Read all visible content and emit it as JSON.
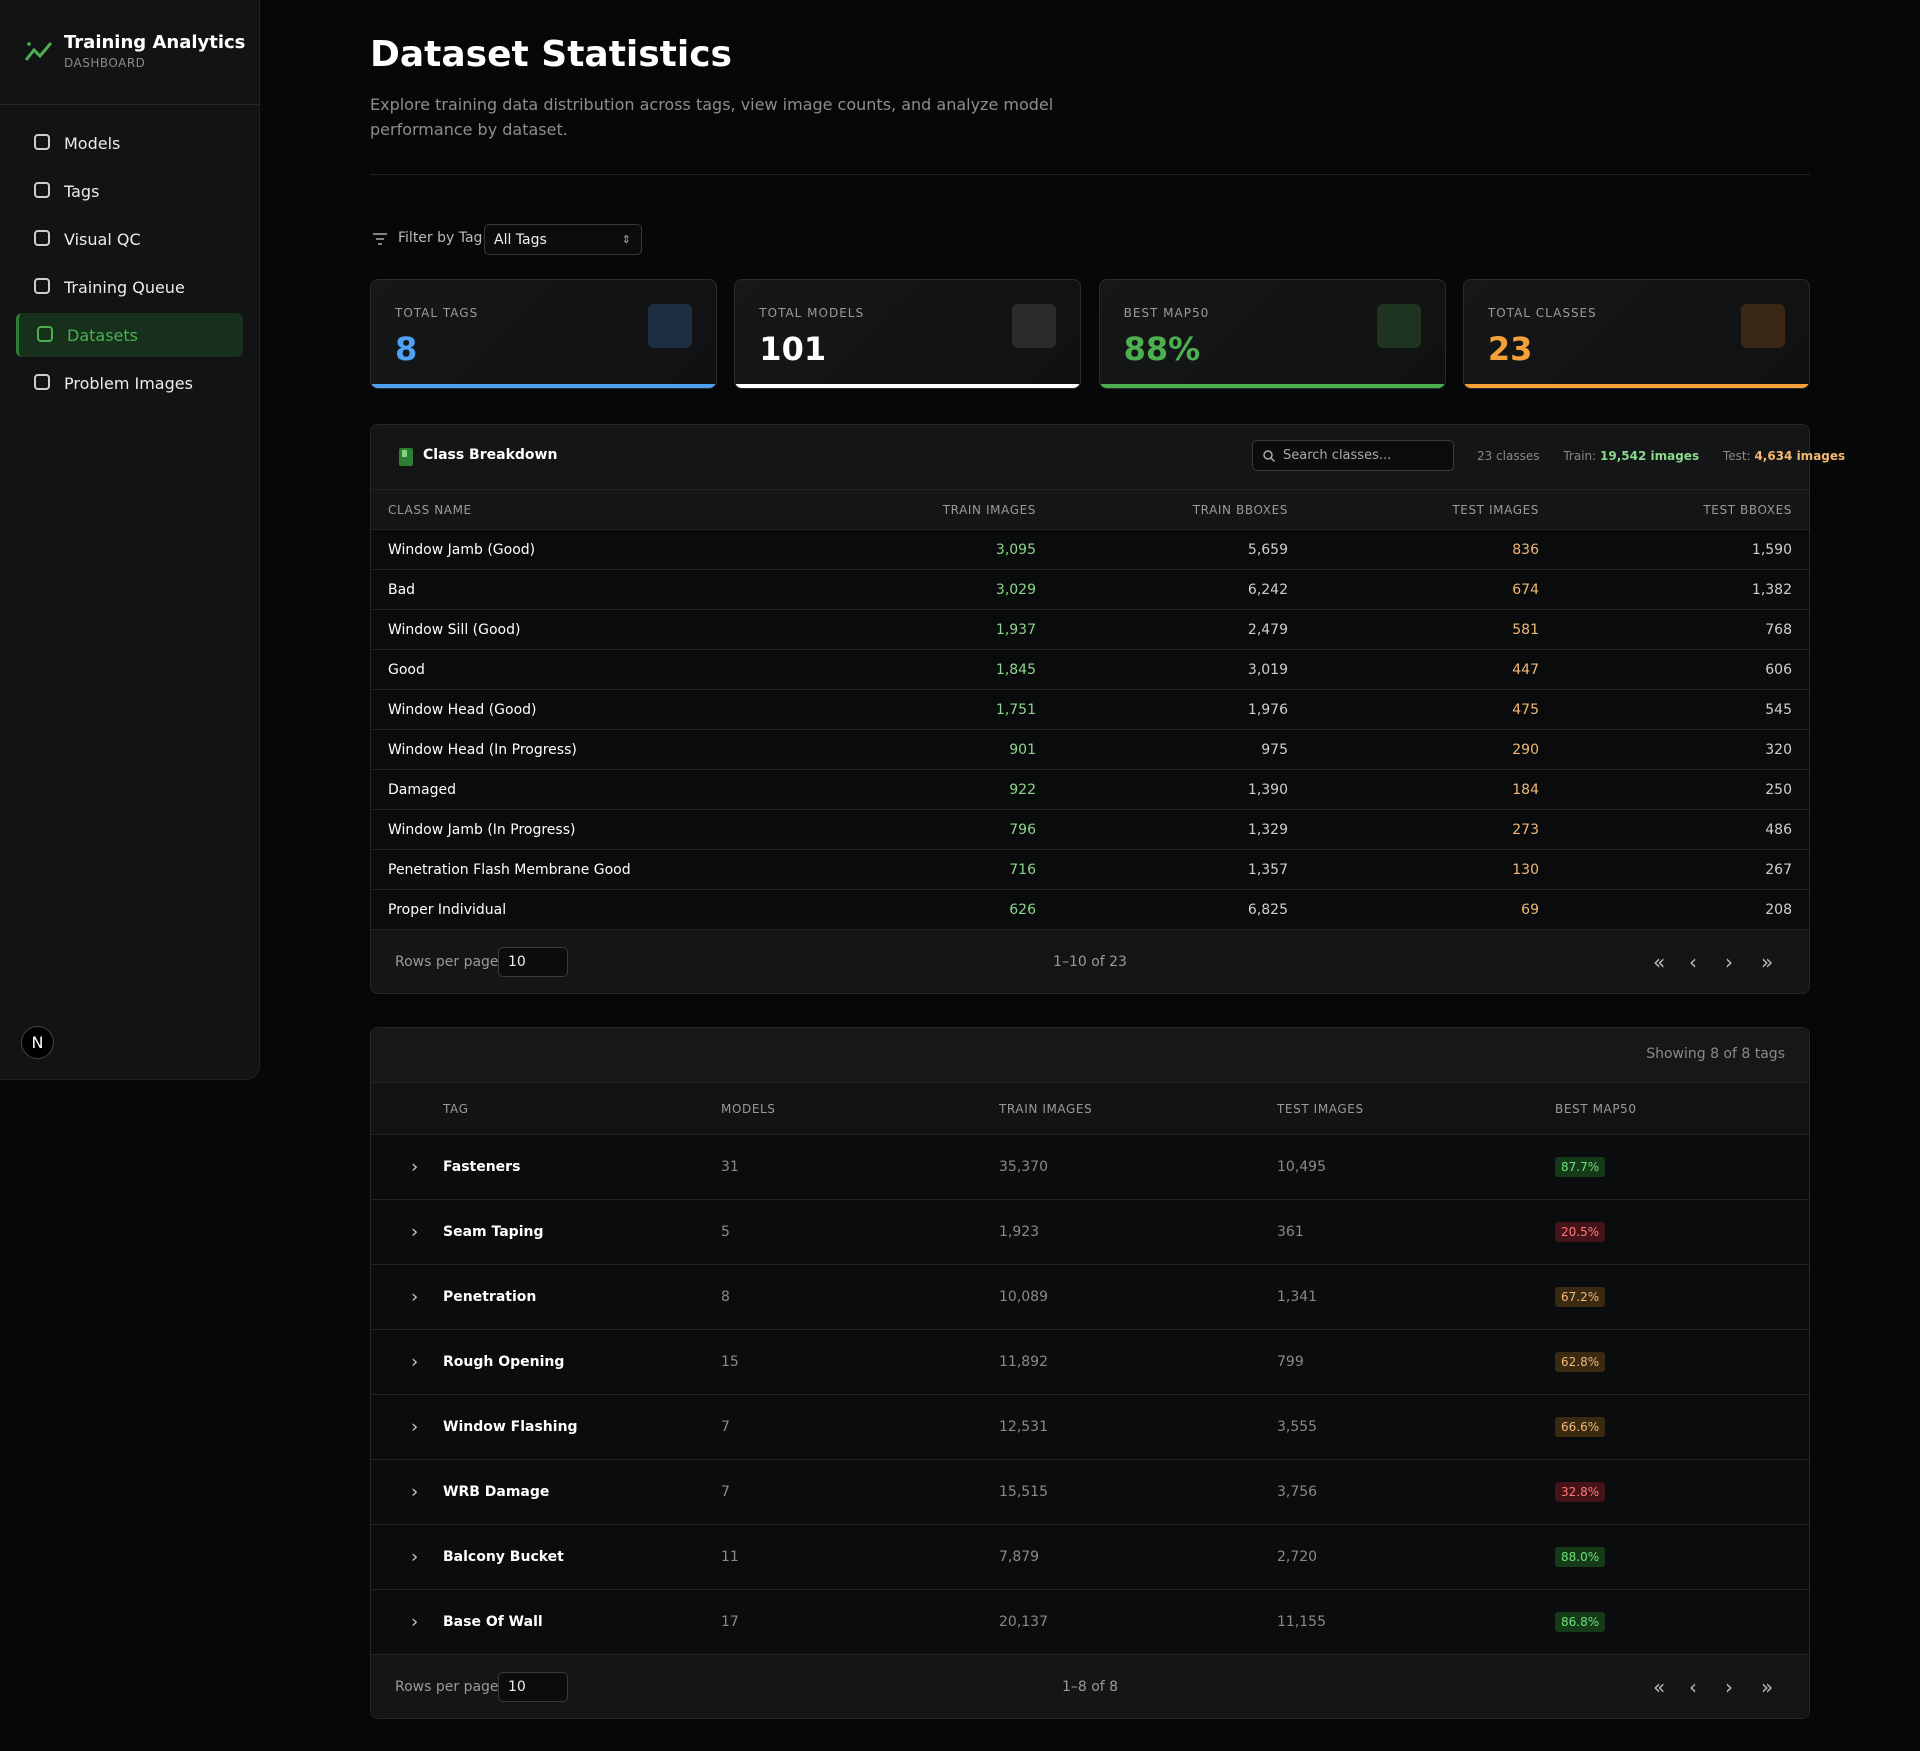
{
  "sidebar": {
    "title": "Training Analytics",
    "subtitle": "DASHBOARD",
    "nav": [
      "Models",
      "Tags",
      "Visual QC",
      "Training Queue",
      "Datasets",
      "Problem Images"
    ],
    "active": 4,
    "avatar": "N"
  },
  "header": {
    "title": "Dataset Statistics",
    "description": "Explore training data distribution across tags, view image counts, and analyze model performance by dataset."
  },
  "filter": {
    "label": "Filter by Tag:",
    "selected": "All Tags"
  },
  "stats": [
    {
      "label": "TOTAL TAGS",
      "value": "8",
      "color": "#4ea1f3"
    },
    {
      "label": "TOTAL MODELS",
      "value": "101",
      "color": "#ffffff"
    },
    {
      "label": "BEST MAP50",
      "value": "88%",
      "color": "#4caf50"
    },
    {
      "label": "TOTAL CLASSES",
      "value": "23",
      "color": "#f5a13a"
    }
  ],
  "class_table": {
    "title": "Class Breakdown",
    "search_placeholder": "Search classes...",
    "count": "23 classes",
    "train_label": "Train:",
    "train_total": "19,542 images",
    "test_label": "Test:",
    "test_total": "4,634 images",
    "columns": [
      "CLASS NAME",
      "TRAIN IMAGES",
      "TRAIN BBOXES",
      "TEST IMAGES",
      "TEST BBOXES"
    ],
    "rows": [
      [
        "Window Jamb (Good)",
        "3,095",
        "5,659",
        "836",
        "1,590"
      ],
      [
        "Bad",
        "3,029",
        "6,242",
        "674",
        "1,382"
      ],
      [
        "Window Sill (Good)",
        "1,937",
        "2,479",
        "581",
        "768"
      ],
      [
        "Good",
        "1,845",
        "3,019",
        "447",
        "606"
      ],
      [
        "Window Head (Good)",
        "1,751",
        "1,976",
        "475",
        "545"
      ],
      [
        "Window Head (In Progress)",
        "901",
        "975",
        "290",
        "320"
      ],
      [
        "Damaged",
        "922",
        "1,390",
        "184",
        "250"
      ],
      [
        "Window Jamb (In Progress)",
        "796",
        "1,329",
        "273",
        "486"
      ],
      [
        "Penetration Flash Membrane Good",
        "716",
        "1,357",
        "130",
        "267"
      ],
      [
        "Proper Individual",
        "626",
        "6,825",
        "69",
        "208"
      ]
    ],
    "rows_per_page_label": "Rows per page:",
    "rows_per_page": "10",
    "range": "1–10 of 23"
  },
  "tag_table": {
    "summary": "Showing 8 of 8 tags",
    "columns": [
      "TAG",
      "MODELS",
      "TRAIN IMAGES",
      "TEST IMAGES",
      "BEST MAP50"
    ],
    "rows": [
      [
        "Fasteners",
        "31",
        "35,370",
        "10,495",
        "87.7%"
      ],
      [
        "Seam Taping",
        "5",
        "1,923",
        "361",
        "20.5%"
      ],
      [
        "Penetration",
        "8",
        "10,089",
        "1,341",
        "67.2%"
      ],
      [
        "Rough Opening",
        "15",
        "11,892",
        "799",
        "62.8%"
      ],
      [
        "Window Flashing",
        "7",
        "12,531",
        "3,555",
        "66.6%"
      ],
      [
        "WRB Damage",
        "7",
        "15,515",
        "3,756",
        "32.8%"
      ],
      [
        "Balcony Bucket",
        "11",
        "7,879",
        "2,720",
        "88.0%"
      ],
      [
        "Base Of Wall",
        "17",
        "20,137",
        "11,155",
        "86.8%"
      ]
    ],
    "badge_colors": [
      "green",
      "red",
      "amber",
      "amber",
      "amber",
      "red",
      "green",
      "green"
    ],
    "rows_per_page_label": "Rows per page:",
    "rows_per_page": "10",
    "range": "1–8 of 8"
  }
}
